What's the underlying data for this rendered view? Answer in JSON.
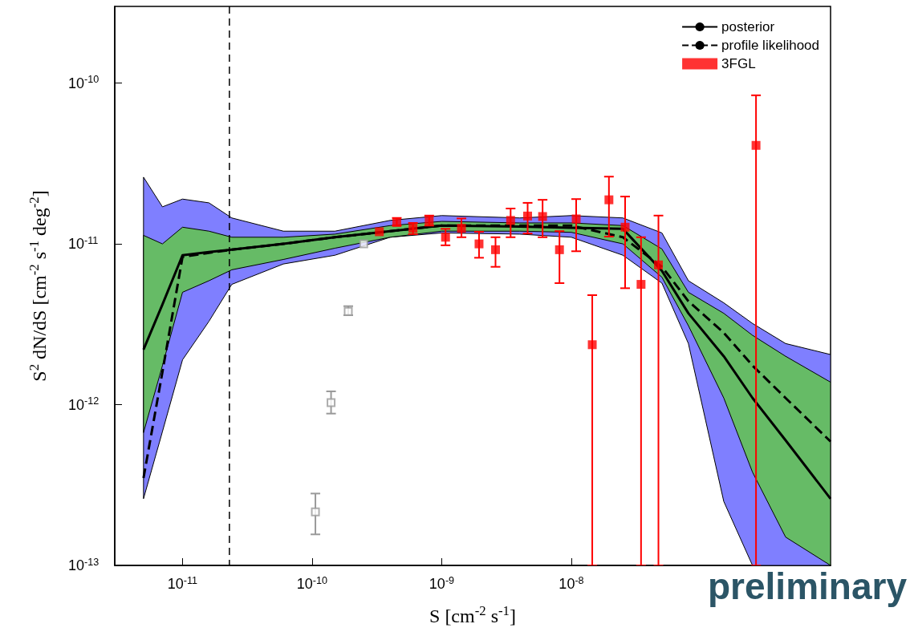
{
  "chart_data": {
    "type": "line",
    "xlabel": "S [cm$^{-2}$ s$^{-1}$]",
    "ylabel": "S$^{2}$ dN/dS [cm$^{-2}$ s$^{-1}$ deg$^{-2}$]",
    "log": "xy",
    "grid": false,
    "legend": "top right",
    "xlim": [
      3e-12,
      1e-06
    ],
    "ylim": [
      1e-13,
      3e-10
    ],
    "xticks": [
      {
        "value": 1e-11,
        "label": "10$^{-11}$"
      },
      {
        "value": 1e-10,
        "label": "10$^{-10}$"
      },
      {
        "value": 1e-09,
        "label": "10$^{-9}$"
      },
      {
        "value": 1e-08,
        "label": "10$^{-8}$"
      }
    ],
    "yticks": [
      {
        "value": 1e-13,
        "label": "10$^{-13}$"
      },
      {
        "value": 1e-12,
        "label": "10$^{-12}$"
      },
      {
        "value": 1e-11,
        "label": "10$^{-11}$"
      },
      {
        "value": 1e-10,
        "label": "10$^{-10}$"
      }
    ],
    "ref_lines": [
      {
        "axis": "x",
        "value": 2.3e-11,
        "line_style": "dashed",
        "color": "#000000"
      }
    ],
    "annotations": [
      "preliminary"
    ],
    "series": [
      {
        "name": "posterior",
        "color": "#000000",
        "marker": "none",
        "line_style": "solid",
        "x": [
          5e-12,
          7e-12,
          1e-11,
          1.6e-11,
          2.4e-11,
          6e-11,
          1.5e-10,
          4e-10,
          1e-09,
          4e-09,
          1e-08,
          2.5e-08,
          5e-08,
          8e-08,
          1.5e-07,
          2.5e-07,
          4.5e-07,
          1e-06
        ],
        "values": [
          2.2e-12,
          4.2e-12,
          8.5e-12,
          8.9e-12,
          9.2e-12,
          1e-11,
          1.1e-11,
          1.2e-11,
          1.3e-11,
          1.28e-11,
          1.26e-11,
          1.24e-11,
          6.8e-12,
          3.7e-12,
          2e-12,
          1.1e-12,
          6e-13,
          2.6e-13
        ],
        "lower": [
          6.7e-13,
          1.75e-12,
          5e-12,
          5.9e-12,
          6.9e-12,
          8e-12,
          9.4e-12,
          1.1e-11,
          1.2e-11,
          1.2e-11,
          1.18e-11,
          1e-11,
          6.2e-12,
          3.1e-12,
          1.1e-12,
          3.8e-13,
          1.5e-13,
          1e-13
        ],
        "upper": [
          1.13e-11,
          1e-11,
          1.27e-11,
          1.2e-11,
          1.1e-11,
          1.1e-11,
          1.15e-11,
          1.3e-11,
          1.38e-11,
          1.35e-11,
          1.35e-11,
          1.3e-11,
          9.3e-12,
          5e-12,
          3.7e-12,
          2.7e-12,
          2e-12,
          1.38e-12
        ]
      },
      {
        "name": "profile likelihood",
        "color": "#000000",
        "marker": "none",
        "line_style": "dashed",
        "x": [
          5e-12,
          7e-12,
          1e-11,
          1.6e-11,
          2.4e-11,
          6e-11,
          1.5e-10,
          4e-10,
          1e-09,
          4e-09,
          1e-08,
          2.5e-08,
          5e-08,
          8e-08,
          1.5e-07,
          2.5e-07,
          4.5e-07,
          1e-06
        ],
        "values": [
          3.5e-13,
          1.6e-12,
          8.3e-12,
          8.8e-12,
          9.2e-12,
          1e-11,
          1.1e-11,
          1.2e-11,
          1.3e-11,
          1.3e-11,
          1.3e-11,
          1.1e-11,
          7.2e-12,
          4.4e-12,
          2.8e-12,
          1.75e-12,
          1.1e-12,
          5.9e-13
        ],
        "lower": [
          2.6e-13,
          6.8e-13,
          1.9e-12,
          3.3e-12,
          5.6e-12,
          7.5e-12,
          8.5e-12,
          1.1e-11,
          1.17e-11,
          1.15e-11,
          1.1e-11,
          8.5e-12,
          5.7e-12,
          2.4e-12,
          2.5e-13,
          1e-13,
          1e-13,
          1e-13
        ],
        "upper": [
          2.6e-11,
          1.7e-11,
          1.9e-11,
          1.8e-11,
          1.45e-11,
          1.2e-11,
          1.2e-11,
          1.4e-11,
          1.5e-11,
          1.45e-11,
          1.5e-11,
          1.45e-11,
          1.17e-11,
          5.9e-12,
          4.3e-12,
          3.2e-12,
          2.4e-12,
          2.05e-12
        ]
      },
      {
        "name": "3FGL",
        "type": "scatter",
        "color": "#ff0000",
        "marker": "square",
        "x": [
          3.3e-10,
          4.5e-10,
          6e-10,
          8e-10,
          1.07e-09,
          1.42e-09,
          1.94e-09,
          2.6e-09,
          3.4e-09,
          4.6e-09,
          6e-09,
          8.1e-09,
          1.09e-08,
          1.45e-08,
          1.95e-08,
          2.6e-08,
          3.45e-08,
          4.7e-08,
          2.66e-07
        ],
        "values": [
          1.19e-11,
          1.36e-11,
          1.25e-11,
          1.4e-11,
          1.1e-11,
          1.25e-11,
          1e-11,
          9.2e-12,
          1.4e-11,
          1.49e-11,
          1.48e-11,
          9.2e-12,
          1.43e-11,
          2.36e-12,
          1.88e-11,
          1.27e-11,
          5.6e-12,
          7.4e-12,
          4.1e-11
        ],
        "errors": [
          null,
          [
            1.3e-11,
            1.45e-11
          ],
          [
            1.15e-11,
            1.35e-11
          ],
          [
            1.3e-11,
            1.5e-11
          ],
          [
            9.8e-12,
            1.24e-11
          ],
          [
            1.1e-11,
            1.44e-11
          ],
          [
            8.2e-12,
            1.19e-11
          ],
          [
            7.2e-12,
            1.1e-11
          ],
          [
            1.1e-11,
            1.66e-11
          ],
          [
            1.16e-11,
            1.8e-11
          ],
          [
            1.1e-11,
            1.88e-11
          ],
          [
            5.7e-12,
            1.2e-11
          ],
          [
            9e-12,
            1.9e-11
          ],
          [
            1e-13,
            4.8e-12
          ],
          [
            1.11e-11,
            2.62e-11
          ],
          [
            5.3e-12,
            1.97e-11
          ],
          [
            1e-13,
            1.1e-11
          ],
          [
            1e-13,
            1.5e-11
          ],
          [
            1e-13,
            8.4e-11
          ]
        ]
      },
      {
        "type": "scatter",
        "color": "#999999",
        "marker": "square",
        "x": [
          2.5e-10,
          1.9e-10,
          1.4e-10,
          1.06e-10
        ],
        "values": [
          1e-11,
          3.8e-12,
          1.03e-12,
          2.15e-13
        ],
        "errors": [
          null,
          [
            3.6e-12,
            4.1e-12
          ],
          [
            8.8e-13,
            1.21e-12
          ],
          [
            1.56e-13,
            2.8e-13
          ]
        ]
      }
    ]
  }
}
